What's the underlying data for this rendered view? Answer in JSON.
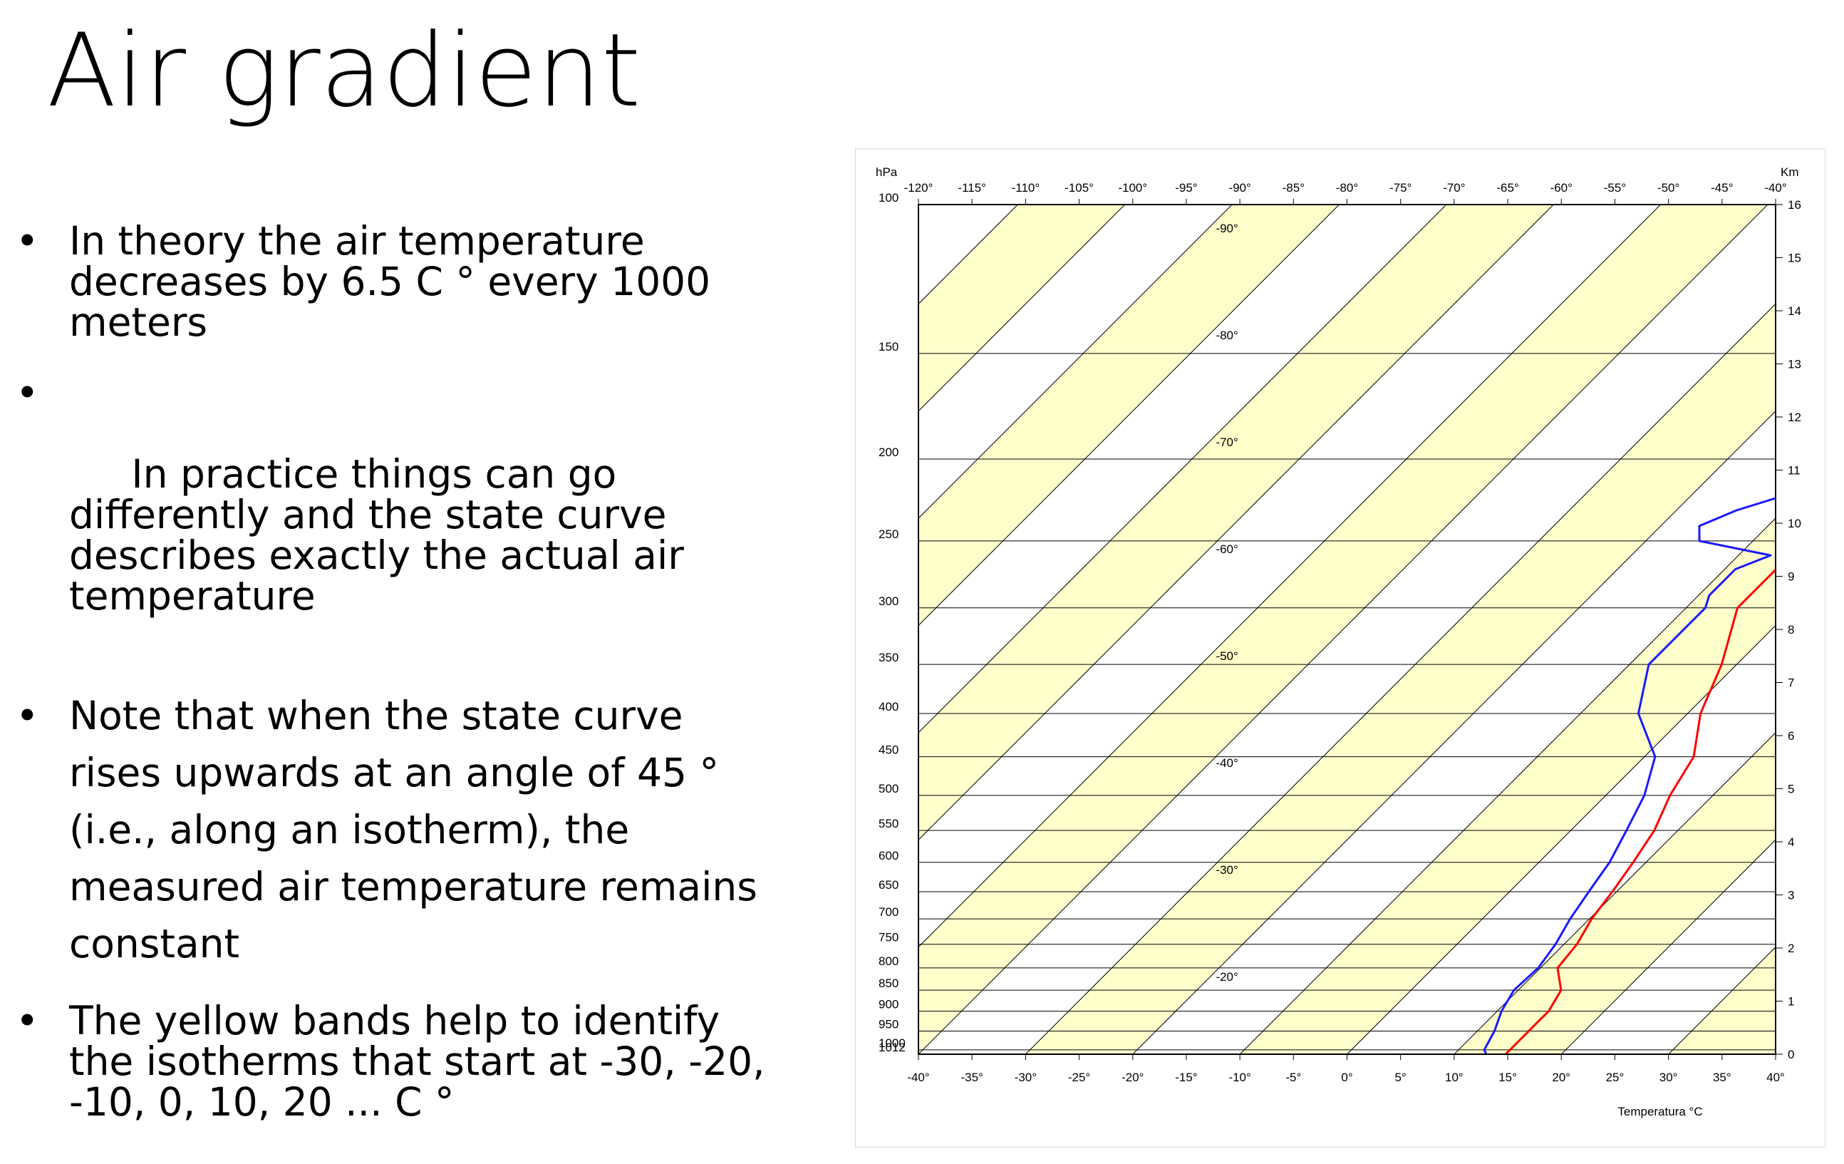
{
  "slide": {
    "title": "Air gradient",
    "bullets": [
      "In theory the air temperature decreases by 6.5 C ° every 1000 meters",
      " In practice things can go differently and the state curve describes exactly the actual air temperature",
      "Note that when the state curve rises upwards at an angle of 45 ° (i.e., along an isotherm), the measured air temperature remains constant",
      "The yellow bands help to identify the isotherms that start at -30, -20, -10, 0, 10, 20 ... C °"
    ],
    "bullet_symbol": "•"
  },
  "colors": {
    "band": "#ffffcc",
    "temperature_curve": "#ff0000",
    "dewpoint_curve": "#1a1aff",
    "grid": "#000000"
  },
  "chart_data": {
    "type": "line",
    "subtype": "skew-T diagram",
    "left_axis_title": "hPa",
    "right_axis_title": "Km",
    "xlabel": "Temperatura °C",
    "bottom_axis": {
      "range": [
        -40,
        40
      ],
      "step": 5,
      "tick_labels": [
        "-40°",
        "-35°",
        "-30°",
        "-25°",
        "-20°",
        "-15°",
        "-10°",
        "-5°",
        "0°",
        "5°",
        "10°",
        "15°",
        "20°",
        "25°",
        "30°",
        "35°",
        "40°"
      ]
    },
    "top_axis": {
      "range": [
        -120,
        -40
      ],
      "step": 5,
      "tick_labels": [
        "-120°",
        "-115°",
        "-110°",
        "-105°",
        "-100°",
        "-95°",
        "-90°",
        "-85°",
        "-80°",
        "-75°",
        "-70°",
        "-65°",
        "-60°",
        "-55°",
        "-50°",
        "-45°",
        "-40°"
      ]
    },
    "pressure_levels": [
      100,
      150,
      200,
      250,
      300,
      350,
      400,
      450,
      500,
      550,
      600,
      650,
      700,
      750,
      800,
      850,
      900,
      950,
      1000,
      1012
    ],
    "pressure_labels": [
      "100",
      "150",
      "200",
      "250",
      "300",
      "350",
      "400",
      "450",
      "500",
      "550",
      "600",
      "650",
      "700",
      "750",
      "800",
      "850",
      "900",
      "950",
      "1000",
      "1012"
    ],
    "height_km_labels": [
      "0",
      "1",
      "2",
      "3",
      "4",
      "5",
      "6",
      "7",
      "8",
      "9",
      "10",
      "11",
      "12",
      "13",
      "14",
      "15",
      "16"
    ],
    "isotherm_labels": [
      "-90°",
      "-80°",
      "-70°",
      "-60°",
      "-50°",
      "-40°",
      "-30°",
      "-20°"
    ],
    "isotherm_values": [
      -90,
      -80,
      -70,
      -60,
      -50,
      -40,
      -30,
      -20
    ],
    "yellow_bands_start": [
      -110,
      -90,
      -70,
      -50,
      -30,
      -10,
      10,
      30
    ],
    "isotherm_step": 10,
    "grid": true,
    "series": [
      {
        "color": "#ff0000",
        "points": [
          [
            1012,
            14.8
          ],
          [
            950,
            14.8
          ],
          [
            900,
            14.8
          ],
          [
            850,
            14
          ],
          [
            800,
            11.6
          ],
          [
            750,
            11.2
          ],
          [
            700,
            10.2
          ],
          [
            650,
            9.6
          ],
          [
            600,
            8.8
          ],
          [
            550,
            7.8
          ],
          [
            500,
            6
          ],
          [
            450,
            4.6
          ],
          [
            400,
            1.2
          ],
          [
            350,
            -1.4
          ],
          [
            300,
            -5.2
          ],
          [
            270,
            -5.2
          ],
          [
            260,
            -3
          ],
          [
            250,
            -2
          ],
          [
            240,
            -1.4
          ],
          [
            230,
            -0.4
          ],
          [
            210,
            0.2
          ],
          [
            200,
            3.8
          ],
          [
            150,
            7.6
          ],
          [
            104,
            12.8
          ]
        ]
      },
      {
        "color": "#1a1aff",
        "points": [
          [
            1012,
            13
          ],
          [
            1000,
            12.4
          ],
          [
            950,
            11.6
          ],
          [
            900,
            10.4
          ],
          [
            850,
            9.6
          ],
          [
            800,
            9.8
          ],
          [
            750,
            9.2
          ],
          [
            700,
            8.2
          ],
          [
            650,
            7.4
          ],
          [
            600,
            6.6
          ],
          [
            550,
            5.2
          ],
          [
            500,
            3.6
          ],
          [
            450,
            1
          ],
          [
            400,
            -4.6
          ],
          [
            350,
            -8.2
          ],
          [
            300,
            -8.2
          ],
          [
            290,
            -9
          ],
          [
            270,
            -9
          ],
          [
            260,
            -7
          ],
          [
            250,
            -15
          ],
          [
            240,
            -16.4
          ],
          [
            230,
            -14.4
          ],
          [
            220,
            -11
          ],
          [
            200,
            -10.4
          ],
          [
            150,
            -11.6
          ],
          [
            104,
            -5
          ]
        ]
      }
    ]
  }
}
